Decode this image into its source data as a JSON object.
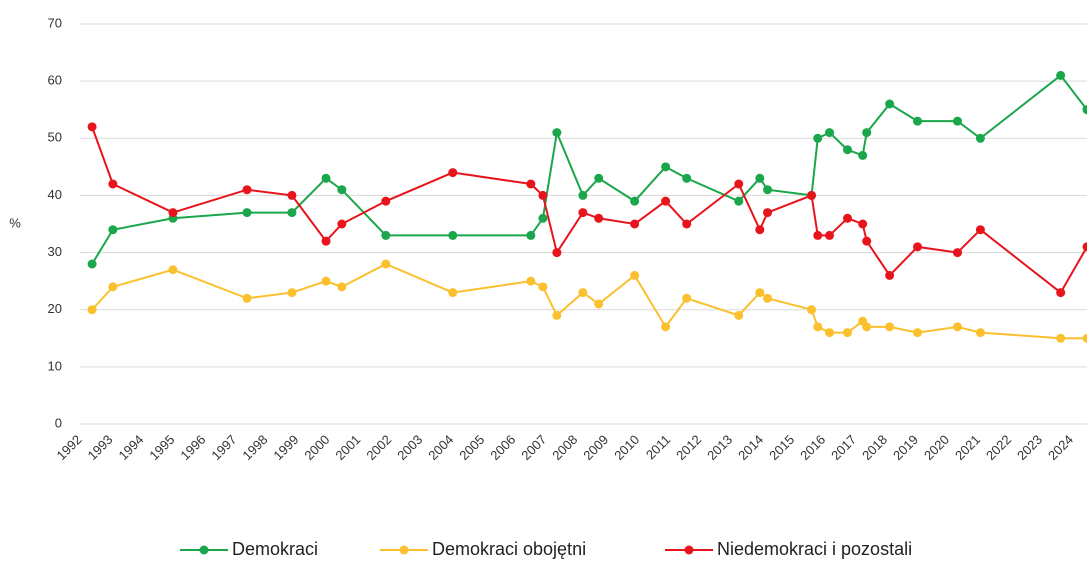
{
  "chart_data": {
    "type": "line",
    "x": [
      1992.39,
      1993.06,
      1995.0,
      1997.39,
      1998.84,
      1999.94,
      2000.45,
      2001.87,
      2004.03,
      2006.55,
      2006.94,
      2007.39,
      2008.23,
      2008.74,
      2009.9,
      2010.9,
      2011.58,
      2013.26,
      2013.94,
      2014.19,
      2015.61,
      2015.81,
      2016.19,
      2016.77,
      2017.26,
      2017.39,
      2018.13,
      2019.03,
      2020.32,
      2021.06,
      2023.65,
      2024.5
    ],
    "series": [
      {
        "name": "Demokraci",
        "color": "#1aa64a",
        "values": [
          28,
          34,
          36,
          37,
          37,
          43,
          41,
          33,
          33,
          33,
          36,
          51,
          40,
          43,
          39,
          45,
          43,
          39,
          43,
          41,
          40,
          50,
          51,
          48,
          47,
          51,
          56,
          53,
          53,
          50,
          61,
          55
        ]
      },
      {
        "name": "Demokraci obojętni",
        "color": "#fbc02d",
        "values": [
          20,
          24,
          27,
          22,
          23,
          25,
          24,
          28,
          23,
          25,
          24,
          19,
          23,
          21,
          26,
          17,
          22,
          19,
          23,
          22,
          20,
          17,
          16,
          16,
          18,
          17,
          17,
          16,
          17,
          16,
          15,
          15
        ]
      },
      {
        "name": "Niedemokraci i pozostali",
        "color": "#e8141b",
        "values": [
          52,
          42,
          37,
          41,
          40,
          32,
          35,
          39,
          44,
          42,
          40,
          30,
          37,
          36,
          35,
          39,
          35,
          42,
          34,
          37,
          40,
          33,
          33,
          36,
          35,
          32,
          26,
          31,
          30,
          34,
          23,
          31
        ]
      }
    ],
    "y_label": "%",
    "xlim": [
      1992,
      2024.5
    ],
    "xticks": [
      1992,
      1993,
      1994,
      1995,
      1996,
      1997,
      1998,
      1999,
      2000,
      2001,
      2002,
      2003,
      2004,
      2005,
      2006,
      2007,
      2008,
      2009,
      2010,
      2011,
      2012,
      2013,
      2014,
      2015,
      2016,
      2017,
      2018,
      2019,
      2020,
      2021,
      2022,
      2023,
      2024
    ],
    "ylim": [
      0,
      70
    ],
    "yticks": [
      0,
      10,
      20,
      30,
      40,
      50,
      60,
      70
    ],
    "grid": true
  }
}
